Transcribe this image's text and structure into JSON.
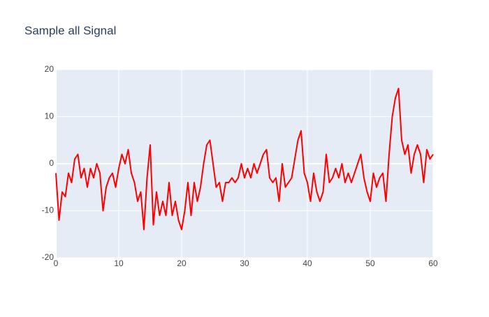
{
  "chart_data": {
    "type": "line",
    "title": "Sample all Signal",
    "x": [
      0,
      0.5,
      1,
      1.5,
      2,
      2.5,
      3,
      3.5,
      4,
      4.5,
      5,
      5.5,
      6,
      6.5,
      7,
      7.5,
      8,
      8.5,
      9,
      9.5,
      10,
      10.5,
      11,
      11.5,
      12,
      12.5,
      13,
      13.5,
      14,
      14.5,
      15,
      15.5,
      16,
      16.5,
      17,
      17.5,
      18,
      18.5,
      19,
      19.5,
      20,
      20.5,
      21,
      21.5,
      22,
      22.5,
      23,
      23.5,
      24,
      24.5,
      25,
      25.5,
      26,
      26.5,
      27,
      27.5,
      28,
      28.5,
      29,
      29.5,
      30,
      30.5,
      31,
      31.5,
      32,
      32.5,
      33,
      33.5,
      34,
      34.5,
      35,
      35.5,
      36,
      36.5,
      37,
      37.5,
      38,
      38.5,
      39,
      39.5,
      40,
      40.5,
      41,
      41.5,
      42,
      42.5,
      43,
      43.5,
      44,
      44.5,
      45,
      45.5,
      46,
      46.5,
      47,
      47.5,
      48,
      48.5,
      49,
      49.5,
      50,
      50.5,
      51,
      51.5,
      52,
      52.5,
      53,
      53.5,
      54,
      54.5,
      55,
      55.5,
      56,
      56.5,
      57,
      57.5,
      58,
      58.5,
      59,
      59.5,
      60
    ],
    "series": [
      {
        "color": "#ff0000",
        "values": [
          -2,
          -12,
          -6,
          -7,
          -2,
          -4,
          1,
          2,
          -3,
          -1,
          -5,
          -1,
          -3,
          0,
          -2,
          -10,
          -5,
          -3,
          -2,
          -5,
          -1,
          2,
          0,
          3,
          -2,
          -4,
          -8,
          -6,
          -14,
          -3,
          4,
          -13,
          -6,
          -11,
          -8,
          -11,
          -4,
          -11,
          -8,
          -12,
          -14,
          -10,
          -4,
          -11,
          -4,
          -8,
          -5,
          0,
          4,
          5,
          0,
          -5,
          -4,
          -8,
          -4,
          -4,
          -3,
          -4,
          -3,
          0,
          -3,
          -1,
          -3,
          0,
          -2,
          0,
          2,
          3,
          -3,
          -4,
          -3,
          -8,
          0,
          -5,
          -4,
          -3,
          1,
          5,
          7,
          -2,
          -4,
          -8,
          -2,
          -6,
          -8,
          -6,
          2,
          -4,
          -3,
          -1,
          -3,
          0,
          -4,
          -2,
          -4,
          -2,
          0,
          2,
          -3,
          -6,
          -8,
          -2,
          -5,
          -3,
          -2,
          -8,
          2,
          10,
          14,
          16,
          5,
          2,
          4,
          -2,
          2,
          4,
          2,
          -4,
          3,
          1,
          2
        ]
      }
    ],
    "xlim": [
      0,
      60
    ],
    "ylim": [
      -20,
      20
    ],
    "xticks": [
      0,
      10,
      20,
      30,
      40,
      50,
      60
    ],
    "yticks": [
      -20,
      -10,
      0,
      10,
      20
    ],
    "grid": true
  }
}
